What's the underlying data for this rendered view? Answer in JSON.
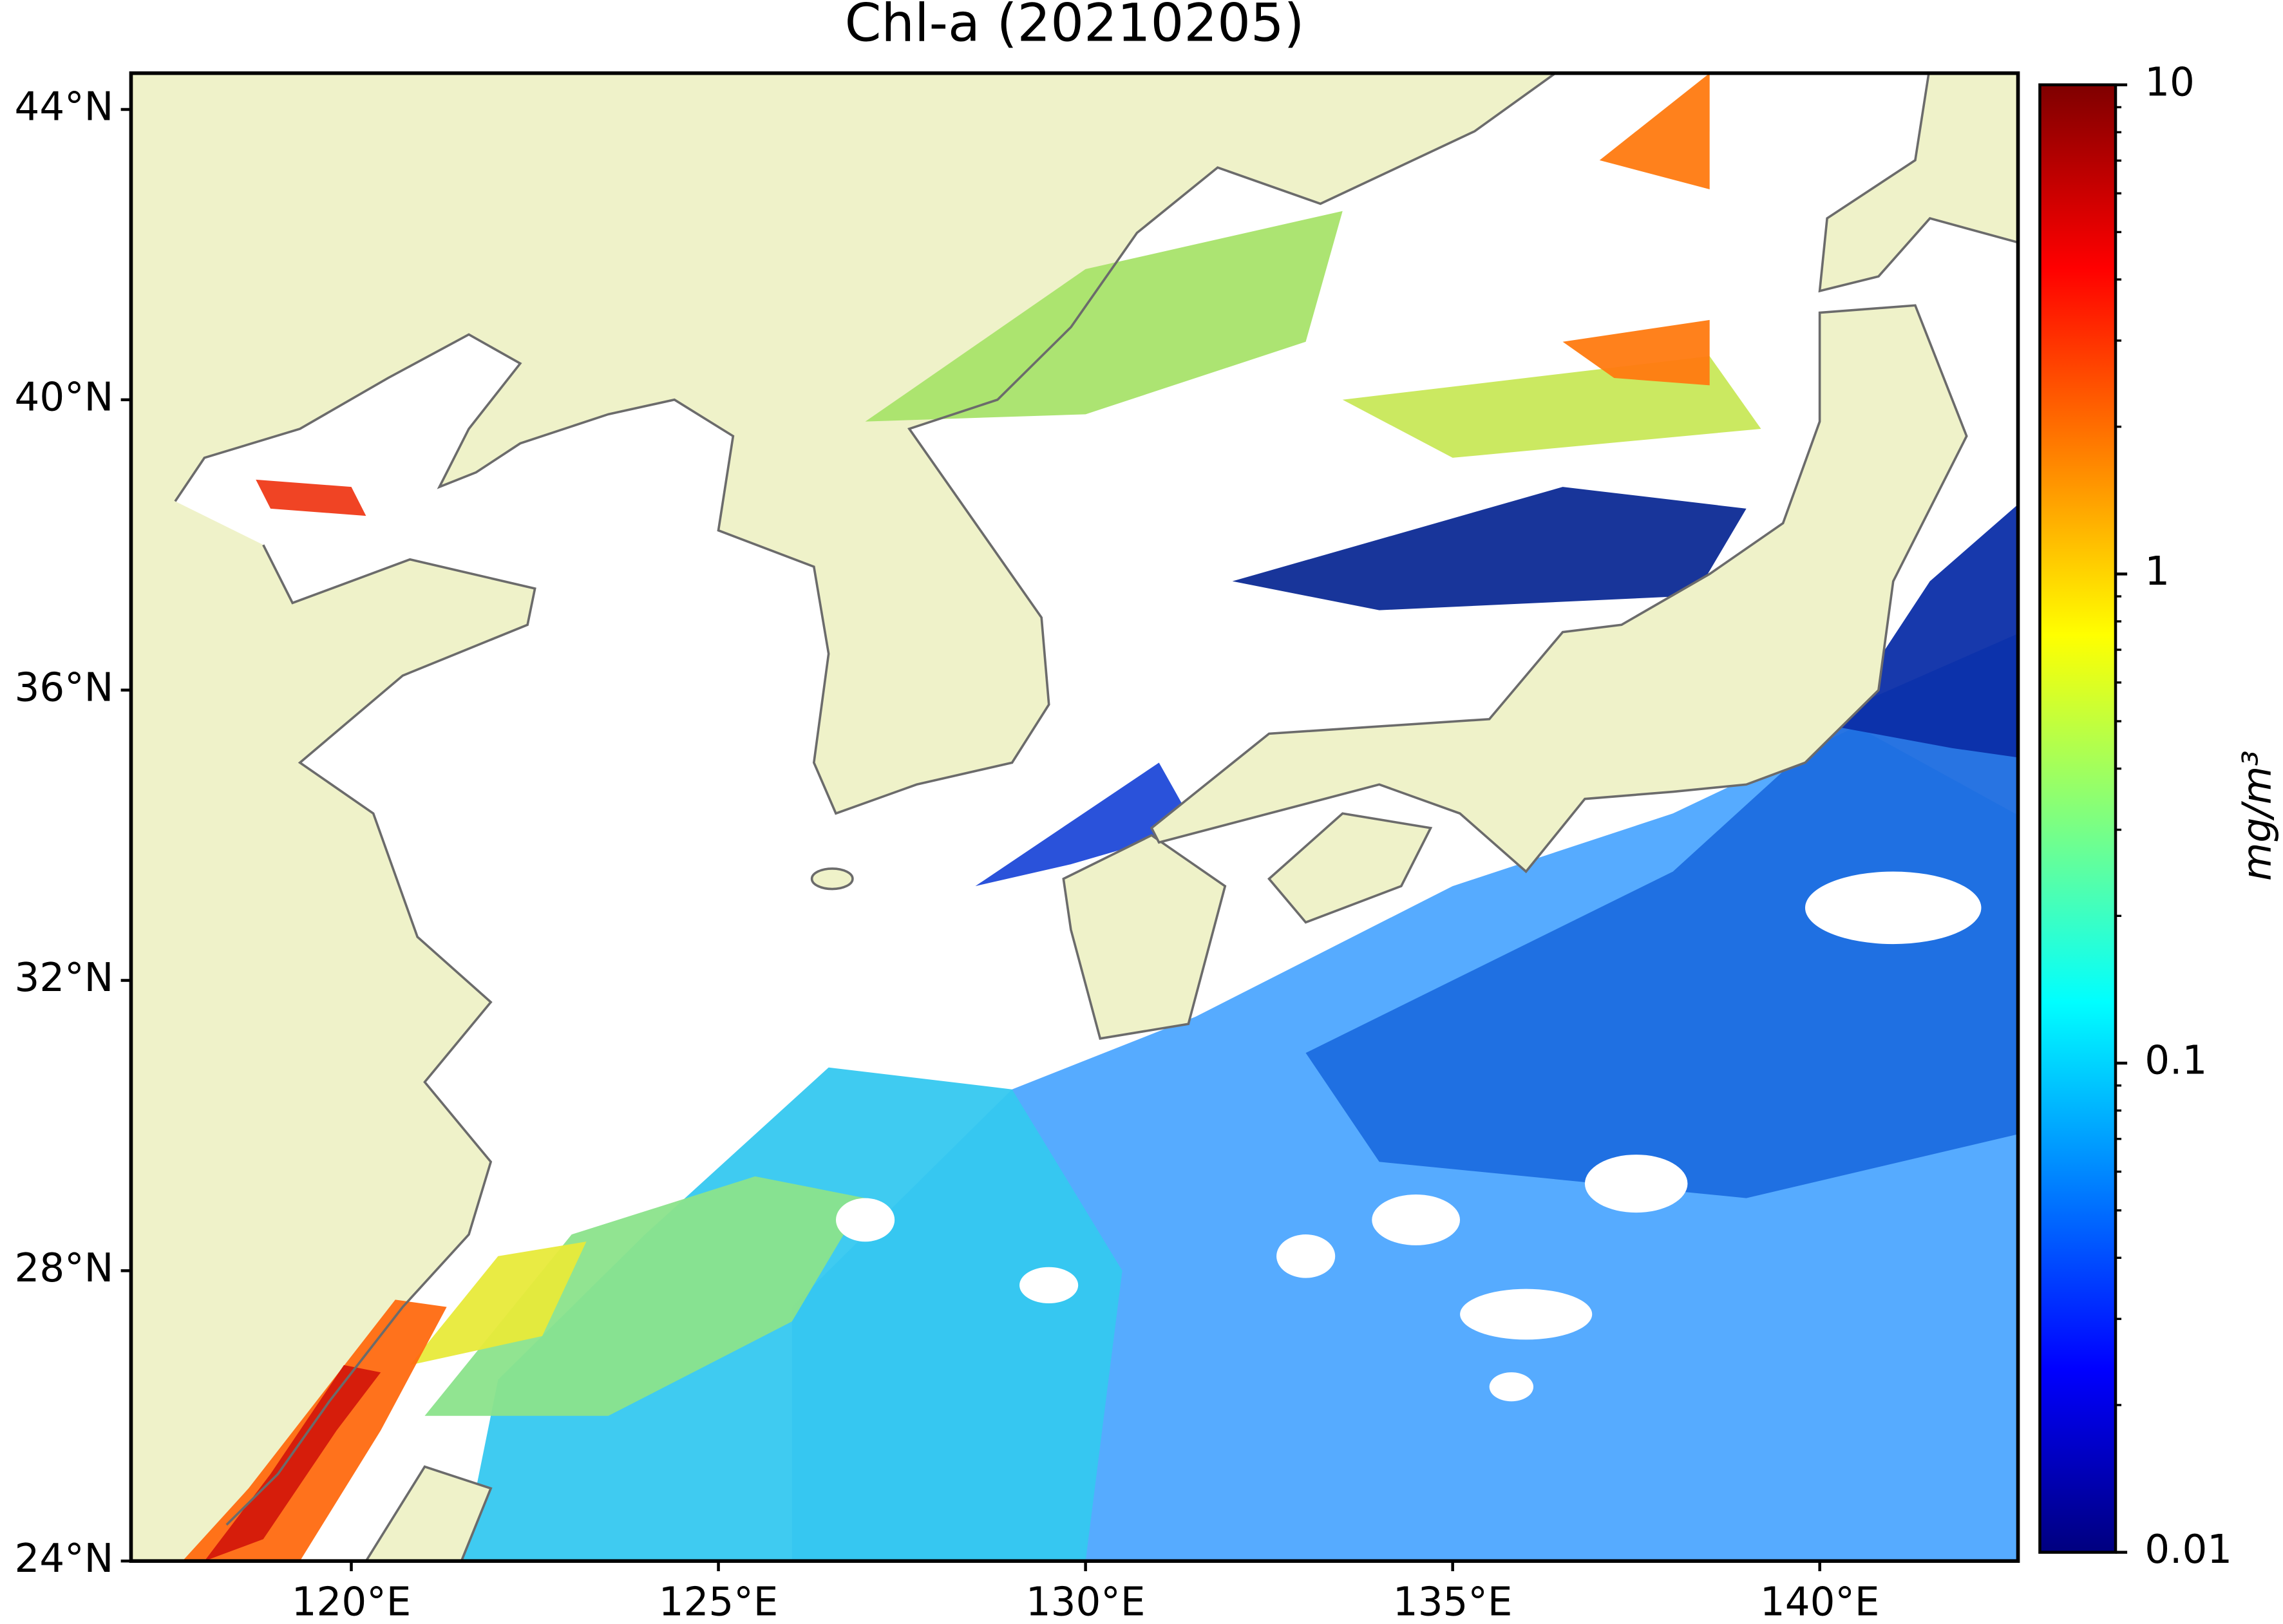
{
  "title": "Chl-a (20210205)",
  "map": {
    "xlim": [
      117,
      142.7
    ],
    "ylim": [
      24,
      44.5
    ],
    "xticks": [
      {
        "value": 120,
        "label": "120°E"
      },
      {
        "value": 125,
        "label": "125°E"
      },
      {
        "value": 130,
        "label": "130°E"
      },
      {
        "value": 135,
        "label": "135°E"
      },
      {
        "value": 140,
        "label": "140°E"
      }
    ],
    "yticks": [
      {
        "value": 24,
        "label": "24°N"
      },
      {
        "value": 28,
        "label": "28°N"
      },
      {
        "value": 32,
        "label": "32°N"
      },
      {
        "value": 36,
        "label": "36°N"
      },
      {
        "value": 40,
        "label": "40°N"
      },
      {
        "value": 44,
        "label": "44°N"
      }
    ]
  },
  "colorbar": {
    "label": "mg/m³",
    "scale": "log",
    "colormap": "jet",
    "lim": [
      0.01,
      10
    ],
    "ticks": [
      0.01,
      0.1,
      1,
      10
    ]
  }
}
